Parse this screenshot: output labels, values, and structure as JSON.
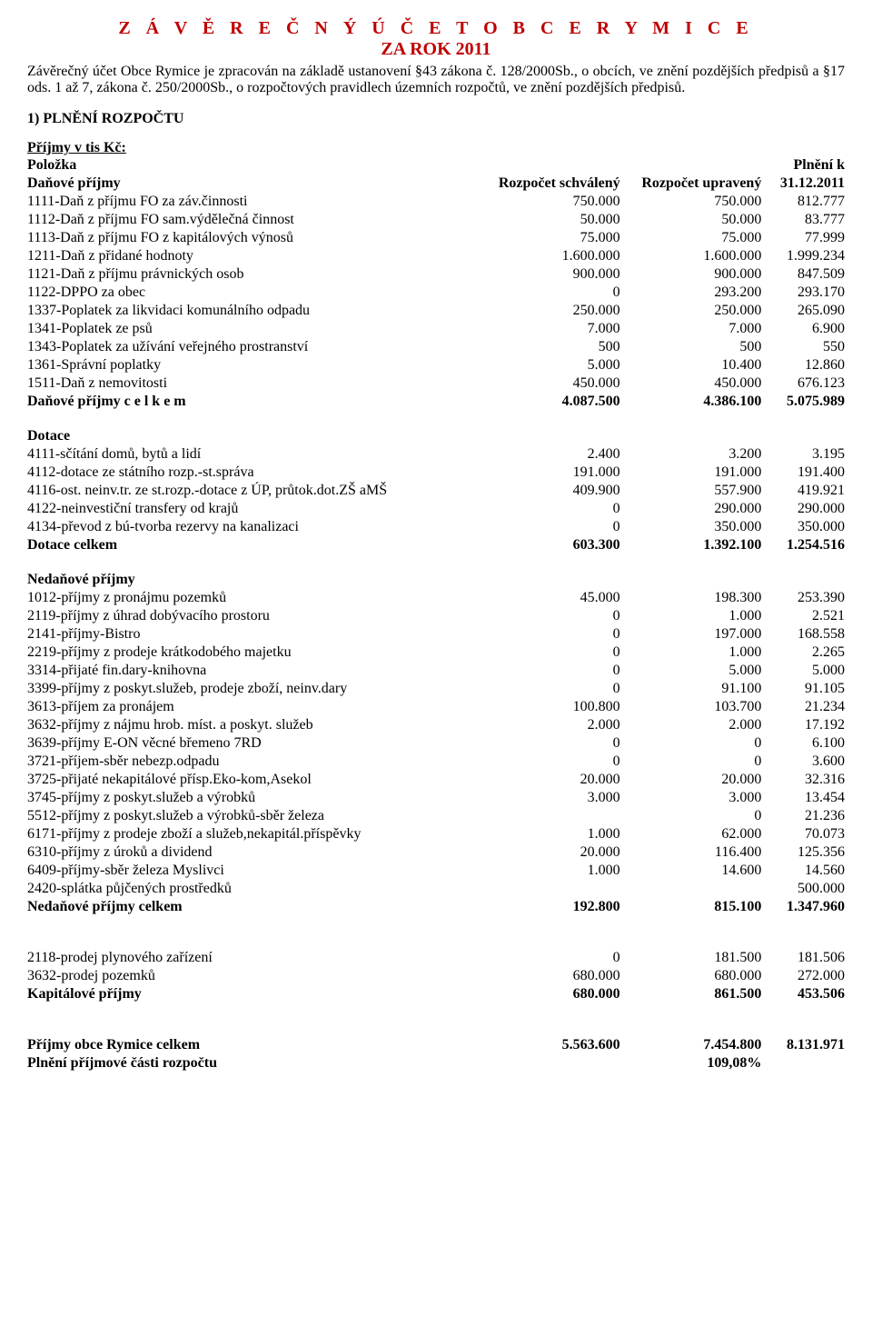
{
  "title": "Z Á V Ě R E Č N Ý   Ú Č E T   O B C E   R Y M I C E",
  "subtitle": "ZA ROK 2011",
  "intro": "Závěrečný účet Obce Rymice je zpracován na základě ustanovení §43 zákona č. 128/2000Sb., o obcích, ve znění pozdějších předpisů a §17 ods. 1 až 7, zákona č. 250/2000Sb., o rozpočtových pravidlech územních rozpočtů, ve znění pozdějších předpisů.",
  "section1_title": "1) PLNĚNÍ ROZPOČTU",
  "section1_sub": "Příjmy v tis Kč:",
  "col_polozka": "Položka",
  "col_plneni": "Plnění k",
  "col_danove": "Daňové příjmy",
  "col_schvaleny": "Rozpočet schválený",
  "col_upraveny": "Rozpočet upravený",
  "col_date": "31.12.2011",
  "danove_rows": [
    {
      "label": "1111-Daň z příjmu FO za záv.činnosti",
      "c1": "750.000",
      "c2": "750.000",
      "c3": "812.777"
    },
    {
      "label": "1112-Daň z příjmu FO sam.výdělečná činnost",
      "c1": "50.000",
      "c2": "50.000",
      "c3": "83.777"
    },
    {
      "label": "1113-Daň z příjmu FO z kapitálových výnosů",
      "c1": "75.000",
      "c2": "75.000",
      "c3": "77.999"
    },
    {
      "label": "1211-Daň z přidané hodnoty",
      "c1": "1.600.000",
      "c2": "1.600.000",
      "c3": "1.999.234"
    },
    {
      "label": "1121-Daň z příjmu právnických osob",
      "c1": "900.000",
      "c2": "900.000",
      "c3": "847.509"
    },
    {
      "label": "1122-DPPO za obec",
      "c1": "0",
      "c2": "293.200",
      "c3": "293.170"
    },
    {
      "label": "1337-Poplatek za likvidaci komunálního odpadu",
      "c1": "250.000",
      "c2": "250.000",
      "c3": "265.090"
    },
    {
      "label": "1341-Poplatek ze psů",
      "c1": "7.000",
      "c2": "7.000",
      "c3": "6.900"
    },
    {
      "label": "1343-Poplatek za užívání veřejného prostranství",
      "c1": "500",
      "c2": "500",
      "c3": "550"
    },
    {
      "label": "1361-Správní poplatky",
      "c1": "5.000",
      "c2": "10.400",
      "c3": "12.860"
    },
    {
      "label": "1511-Daň z nemovitosti",
      "c1": "450.000",
      "c2": "450.000",
      "c3": "676.123"
    }
  ],
  "danove_total": {
    "label": "Daňové příjmy  c e l k e m",
    "c1": "4.087.500",
    "c2": "4.386.100",
    "c3": "5.075.989"
  },
  "dotace_head": "Dotace",
  "dotace_rows": [
    {
      "label": "4111-sčítání domů, bytů a lidí",
      "c1": "2.400",
      "c2": "3.200",
      "c3": "3.195"
    },
    {
      "label": "4112-dotace ze státního rozp.-st.správa",
      "c1": "191.000",
      "c2": "191.000",
      "c3": "191.400"
    },
    {
      "label": "4116-ost. neinv.tr. ze st.rozp.-dotace z ÚP, průtok.dot.ZŠ aMŠ",
      "c1": "409.900",
      "c2": "557.900",
      "c3": "419.921"
    },
    {
      "label": "4122-neinvestiční transfery od krajů",
      "c1": "0",
      "c2": "290.000",
      "c3": "290.000"
    },
    {
      "label": "4134-převod z bú-tvorba rezervy na kanalizaci",
      "c1": "0",
      "c2": "350.000",
      "c3": "350.000"
    }
  ],
  "dotace_total": {
    "label": "Dotace celkem",
    "c1": "603.300",
    "c2": "1.392.100",
    "c3": "1.254.516"
  },
  "nedanove_head": "Nedaňové příjmy",
  "nedanove_rows": [
    {
      "label": "1012-příjmy z pronájmu pozemků",
      "c1": "45.000",
      "c2": "198.300",
      "c3": "253.390"
    },
    {
      "label": "2119-příjmy z úhrad dobývacího prostoru",
      "c1": "0",
      "c2": "1.000",
      "c3": "2.521"
    },
    {
      "label": "2141-příjmy-Bistro",
      "c1": "0",
      "c2": "197.000",
      "c3": "168.558"
    },
    {
      "label": "2219-příjmy z prodeje krátkodobého majetku",
      "c1": "0",
      "c2": "1.000",
      "c3": "2.265"
    },
    {
      "label": "3314-přijaté fin.dary-knihovna",
      "c1": "0",
      "c2": "5.000",
      "c3": "5.000"
    },
    {
      "label": "3399-příjmy z poskyt.služeb, prodeje zboží, neinv.dary",
      "c1": "0",
      "c2": "91.100",
      "c3": "91.105"
    },
    {
      "label": "3613-příjem za pronájem",
      "c1": "100.800",
      "c2": "103.700",
      "c3": "21.234"
    },
    {
      "label": "3632-příjmy z nájmu hrob. míst. a poskyt. služeb",
      "c1": "2.000",
      "c2": "2.000",
      "c3": "17.192"
    },
    {
      "label": "3639-příjmy E-ON věcné břemeno 7RD",
      "c1": "0",
      "c2": "0",
      "c3": "6.100"
    },
    {
      "label": "3721-příjem-sběr nebezp.odpadu",
      "c1": "0",
      "c2": "0",
      "c3": "3.600"
    },
    {
      "label": "3725-přijaté nekapitálové přísp.Eko-kom,Asekol",
      "c1": "20.000",
      "c2": "20.000",
      "c3": "32.316"
    },
    {
      "label": "3745-příjmy z poskyt.služeb a výrobků",
      "c1": "3.000",
      "c2": "3.000",
      "c3": "13.454"
    },
    {
      "label": "5512-příjmy z poskyt.služeb a výrobků-sběr železa",
      "c1": "",
      "c2": "0",
      "c3": "21.236"
    },
    {
      "label": "6171-příjmy z prodeje zboží a služeb,nekapitál.příspěvky",
      "c1": "1.000",
      "c2": "62.000",
      "c3": "70.073"
    },
    {
      "label": "6310-příjmy z úroků a dividend",
      "c1": "20.000",
      "c2": "116.400",
      "c3": "125.356"
    },
    {
      "label": "6409-příjmy-sběr železa Myslivci",
      "c1": "1.000",
      "c2": "14.600",
      "c3": "14.560"
    },
    {
      "label": "2420-splátka půjčených prostředků",
      "c1": "",
      "c2": "",
      "c3": "500.000"
    }
  ],
  "nedanove_total": {
    "label": "Nedaňové příjmy celkem",
    "c1": "192.800",
    "c2": "815.100",
    "c3": "1.347.960"
  },
  "kapital_rows": [
    {
      "label": "2118-prodej plynového zařízení",
      "c1": "0",
      "c2": "181.500",
      "c3": "181.506"
    },
    {
      "label": "3632-prodej pozemků",
      "c1": "680.000",
      "c2": "680.000",
      "c3": "272.000"
    }
  ],
  "kapital_total": {
    "label": "Kapitálové příjmy",
    "c1": "680.000",
    "c2": "861.500",
    "c3": "453.506"
  },
  "grand_total": {
    "label": "Příjmy obce Rymice celkem",
    "c1": "5.563.600",
    "c2": "7.454.800",
    "c3": "8.131.971"
  },
  "fulfillment": {
    "label": "Plnění příjmové části rozpočtu",
    "c2": "109,08%"
  }
}
